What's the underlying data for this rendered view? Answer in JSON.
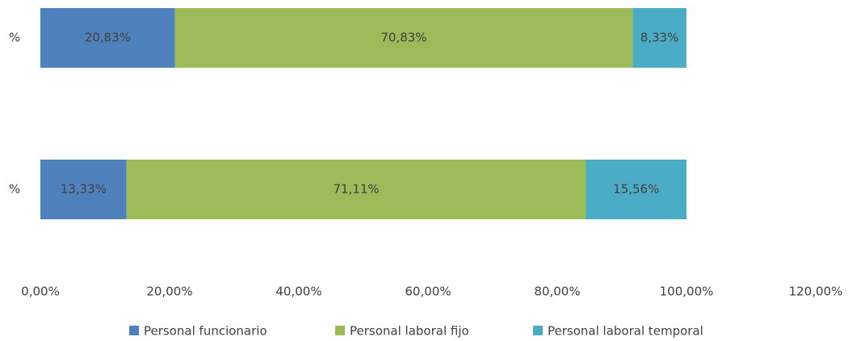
{
  "chart_data": {
    "type": "stacked_barh",
    "categories": [
      "%",
      "%"
    ],
    "series": [
      {
        "name": "Personal funcionario",
        "color": "#4f81bd",
        "values": [
          20.83,
          13.33
        ],
        "value_labels": [
          "20,83%",
          "13,33%"
        ]
      },
      {
        "name": "Personal laboral fijo",
        "color": "#9bbb59",
        "values": [
          70.83,
          71.11
        ],
        "value_labels": [
          "70,83%",
          "71,11%"
        ]
      },
      {
        "name": "Personal laboral temporal",
        "color": "#4bacc6",
        "values": [
          8.33,
          15.56
        ],
        "value_labels": [
          "8,33%",
          "15,56%"
        ]
      }
    ],
    "xlim": [
      0,
      120
    ],
    "xticks": [
      {
        "value": 0,
        "label": "0,00%"
      },
      {
        "value": 20,
        "label": "20,00%"
      },
      {
        "value": 40,
        "label": "40,00%"
      },
      {
        "value": 60,
        "label": "60,00%"
      },
      {
        "value": 80,
        "label": "80,00%"
      },
      {
        "value": 100,
        "label": "100,00%"
      },
      {
        "value": 120,
        "label": "120,00%"
      }
    ],
    "grid": false,
    "legend": "bottom"
  }
}
